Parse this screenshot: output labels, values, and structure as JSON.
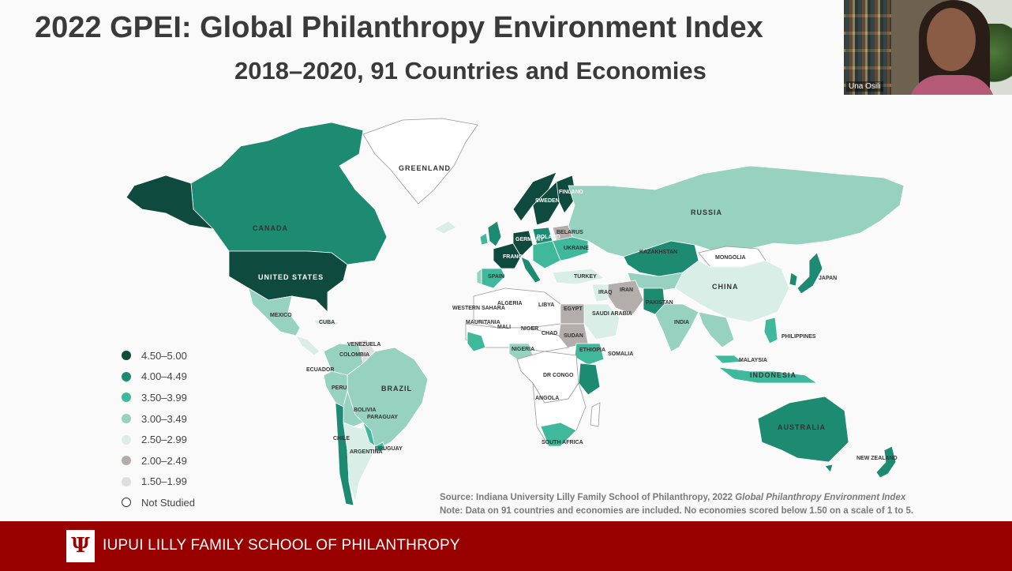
{
  "slide": {
    "title": "2022 GPEI: Global Philanthropy Environment Index",
    "subtitle": "2018–2020, 91 Countries and Economies"
  },
  "video": {
    "participant_name": "Una Osili"
  },
  "legend": {
    "items": [
      {
        "label": "4.50–5.00",
        "color": "#0f4a3e"
      },
      {
        "label": "4.00–4.49",
        "color": "#1d8a72"
      },
      {
        "label": "3.50–3.99",
        "color": "#3fb89c"
      },
      {
        "label": "3.00–3.49",
        "color": "#97d1c0"
      },
      {
        "label": "2.50–2.99",
        "color": "#d8eee6"
      },
      {
        "label": "2.00–2.49",
        "color": "#b3aeac"
      },
      {
        "label": "1.50–1.99",
        "color": "#dedede"
      },
      {
        "label": "Not Studied",
        "color": "#ffffff"
      }
    ]
  },
  "map": {
    "labels": {
      "greenland": "GREENLAND",
      "canada": "CANADA",
      "united_states": "UNITED STATES",
      "mexico": "MEXICO",
      "cuba": "CUBA",
      "brazil": "BRAZIL",
      "peru": "PERU",
      "bolivia": "BOLIVIA",
      "chile": "CHILE",
      "argentina": "ARGENTINA",
      "russia": "RUSSIA",
      "kazakhstan": "KAZAKHSTAN",
      "mongolia": "MONGOLIA",
      "china": "CHINA",
      "india": "INDIA",
      "iran": "IRAN",
      "pakistan": "PAKISTAN",
      "saudi_arabia": "SAUDI ARABIA",
      "turkey": "TURKEY",
      "ukraine": "UKRAINE",
      "france": "FRANCE",
      "spain": "SPAIN",
      "finland": "FINLAND",
      "sweden": "SWEDEN",
      "algeria": "ALGERIA",
      "libya": "LIBYA",
      "egypt": "EGYPT",
      "mali": "MALI",
      "niger": "NIGER",
      "chad": "CHAD",
      "sudan": "SUDAN",
      "nigeria": "NIGERIA",
      "ethiopia": "ETHIOPIA",
      "somalia": "SOMALIA",
      "dr_congo": "DR CONGO",
      "angola": "ANGOLA",
      "south_africa": "SOUTH AFRICA",
      "australia": "AUSTRALIA",
      "new_zealand": "NEW ZEALAND",
      "indonesia": "INDONESIA",
      "philippines": "PHILIPPINES",
      "japan": "JAPAN",
      "mauritania": "MAURITANIA",
      "western_sahara": "WESTERN SAHARA",
      "colombia": "COLOMBIA",
      "venezuela": "VENEZUELA",
      "ecuador": "ECUADOR",
      "paraguay": "PARAGUAY",
      "uruguay": "URUGUAY",
      "malaysia": "MALAYSIA",
      "poland": "POLAND",
      "germany": "GERMANY",
      "belarus": "BELARUS",
      "iraq": "IRAQ"
    }
  },
  "source": {
    "line1_prefix": "Source: Indiana University Lilly Family School of Philanthropy, 2022 ",
    "line1_title": "Global Philanthropy Environment Index",
    "line2": "Note: Data on 91 countries and economies are included. No economies scored below 1.50 on a scale of 1 to 5."
  },
  "footer": {
    "logo_mark": "Ψ",
    "school_name": "IUPUI LILLY FAMILY SCHOOL OF PHILANTHROPY"
  }
}
